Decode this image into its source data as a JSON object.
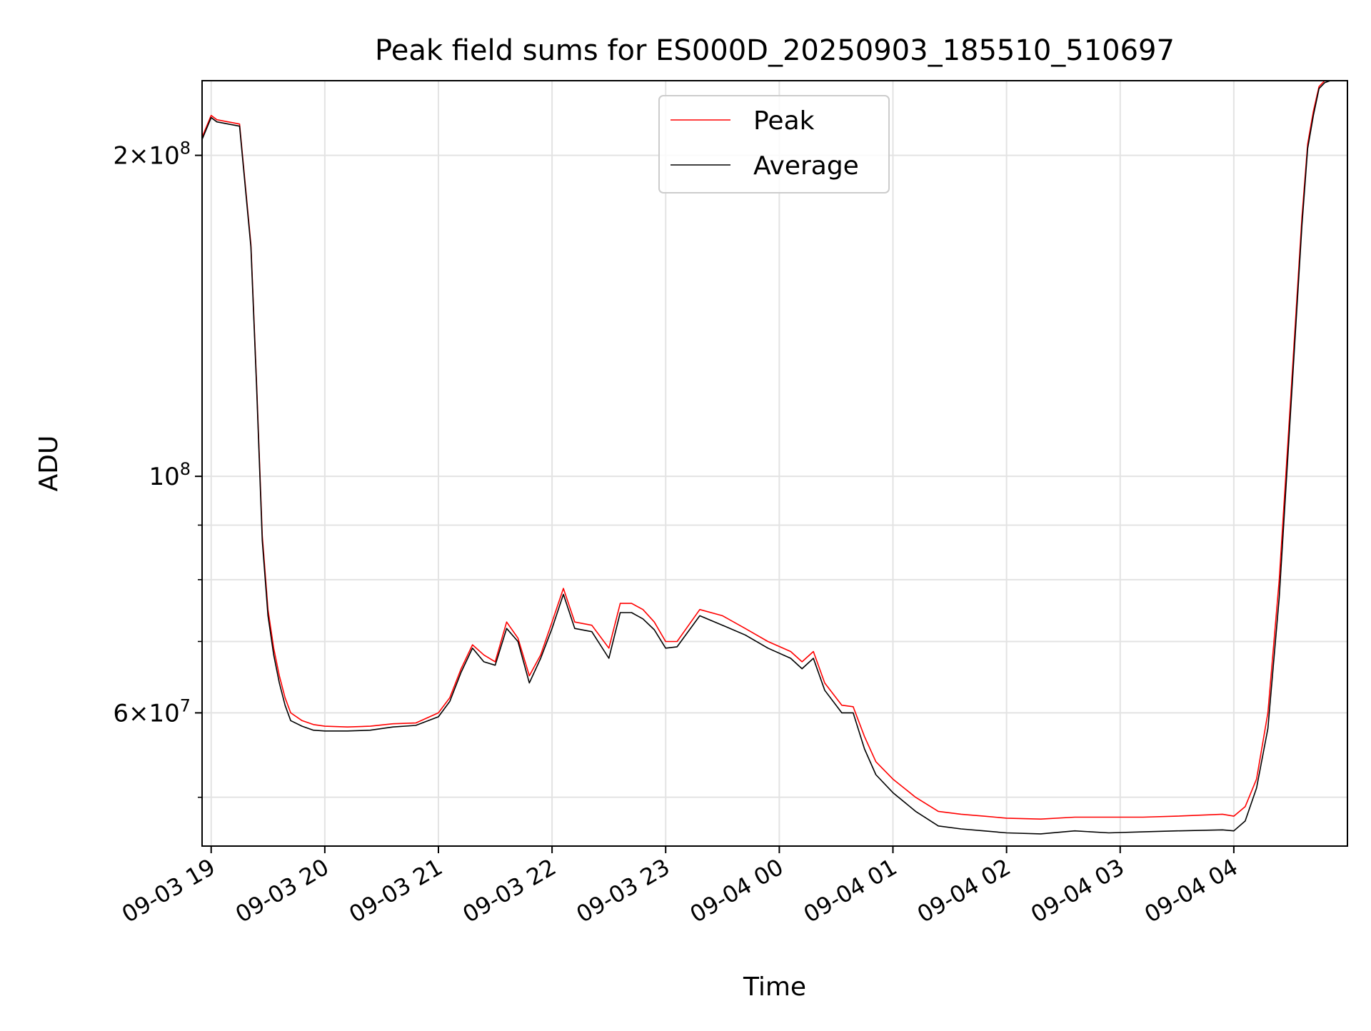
{
  "chart_data": {
    "type": "line",
    "title": "Peak field sums for ES000D_20250903_185510_510697",
    "xlabel": "Time",
    "ylabel": "ADU",
    "x_unit": "hours since 2025-09-03 19:00 (axis shows MM-DD HH)",
    "xlim": [
      -0.08,
      10.0
    ],
    "ylim": [
      45000000,
      235000000
    ],
    "yscale": "log",
    "grid": true,
    "legend_position": "upper center",
    "x_ticks": [
      {
        "value": 0,
        "label": "09-03 19"
      },
      {
        "value": 1,
        "label": "09-03 20"
      },
      {
        "value": 2,
        "label": "09-03 21"
      },
      {
        "value": 3,
        "label": "09-03 22"
      },
      {
        "value": 4,
        "label": "09-03 23"
      },
      {
        "value": 5,
        "label": "09-04 00"
      },
      {
        "value": 6,
        "label": "09-04 01"
      },
      {
        "value": 7,
        "label": "09-04 02"
      },
      {
        "value": 8,
        "label": "09-04 03"
      },
      {
        "value": 9,
        "label": "09-04 04"
      }
    ],
    "y_major_ticks": [
      {
        "value": 200000000,
        "mantissa": "2",
        "exponent": "8"
      },
      {
        "value": 100000000,
        "mantissa": "",
        "exponent": "8"
      },
      {
        "value": 60000000,
        "mantissa": "6",
        "exponent": "7"
      }
    ],
    "y_minor_ticks": [
      50000000,
      70000000,
      80000000,
      90000000
    ],
    "series": [
      {
        "name": "Peak",
        "color": "#ff0000",
        "x": [
          -0.08,
          0.0,
          0.05,
          0.25,
          0.35,
          0.4,
          0.45,
          0.5,
          0.55,
          0.6,
          0.65,
          0.7,
          0.8,
          0.9,
          1.0,
          1.2,
          1.4,
          1.6,
          1.8,
          2.0,
          2.1,
          2.2,
          2.3,
          2.4,
          2.5,
          2.6,
          2.7,
          2.8,
          2.9,
          3.0,
          3.1,
          3.2,
          3.35,
          3.5,
          3.6,
          3.7,
          3.8,
          3.9,
          4.0,
          4.1,
          4.3,
          4.5,
          4.7,
          4.9,
          5.1,
          5.2,
          5.3,
          5.4,
          5.55,
          5.65,
          5.75,
          5.85,
          6.0,
          6.2,
          6.4,
          6.6,
          6.8,
          7.0,
          7.3,
          7.6,
          7.9,
          8.2,
          8.5,
          8.9,
          9.0,
          9.1,
          9.2,
          9.3,
          9.4,
          9.5,
          9.6,
          9.65,
          9.7,
          9.75,
          9.8,
          9.85,
          10.0
        ],
        "y": [
          208000000,
          218000000,
          216000000,
          214000000,
          165000000,
          122000000,
          88000000,
          75000000,
          69000000,
          65000000,
          62000000,
          60000000,
          59000000,
          58500000,
          58300000,
          58200000,
          58300000,
          58600000,
          58700000,
          60000000,
          62000000,
          66000000,
          69500000,
          68000000,
          67000000,
          73000000,
          70500000,
          65000000,
          68000000,
          73000000,
          78500000,
          73000000,
          72500000,
          69000000,
          76000000,
          76000000,
          75000000,
          73000000,
          70000000,
          70000000,
          75000000,
          74000000,
          72000000,
          70000000,
          68500000,
          67000000,
          68500000,
          64000000,
          61000000,
          60800000,
          57000000,
          54000000,
          52000000,
          50000000,
          48500000,
          48200000,
          48000000,
          47800000,
          47700000,
          47900000,
          47900000,
          47900000,
          48000000,
          48200000,
          48000000,
          49000000,
          52000000,
          60000000,
          80000000,
          118000000,
          175000000,
          205000000,
          220000000,
          232000000,
          235000000,
          236000000,
          236000000
        ]
      },
      {
        "name": "Average",
        "color": "#000000",
        "x": [
          -0.08,
          0.0,
          0.05,
          0.25,
          0.35,
          0.4,
          0.45,
          0.5,
          0.55,
          0.6,
          0.65,
          0.7,
          0.8,
          0.9,
          1.0,
          1.2,
          1.4,
          1.6,
          1.8,
          2.0,
          2.1,
          2.2,
          2.3,
          2.4,
          2.5,
          2.6,
          2.7,
          2.8,
          2.9,
          3.0,
          3.1,
          3.2,
          3.35,
          3.5,
          3.6,
          3.7,
          3.8,
          3.9,
          4.0,
          4.1,
          4.3,
          4.5,
          4.7,
          4.9,
          5.1,
          5.2,
          5.3,
          5.4,
          5.55,
          5.65,
          5.75,
          5.85,
          6.0,
          6.2,
          6.4,
          6.6,
          6.8,
          7.0,
          7.3,
          7.6,
          7.9,
          8.2,
          8.5,
          8.9,
          9.0,
          9.1,
          9.2,
          9.3,
          9.4,
          9.5,
          9.6,
          9.65,
          9.7,
          9.75,
          9.8,
          9.85,
          10.0
        ],
        "y": [
          207000000,
          217000000,
          215000000,
          213000000,
          164000000,
          121000000,
          87000000,
          74000000,
          68000000,
          64000000,
          61000000,
          59000000,
          58300000,
          57800000,
          57700000,
          57700000,
          57800000,
          58200000,
          58400000,
          59500000,
          61500000,
          65500000,
          69000000,
          67000000,
          66500000,
          72000000,
          70000000,
          64000000,
          67500000,
          72000000,
          77500000,
          72000000,
          71500000,
          67500000,
          74500000,
          74500000,
          73500000,
          71800000,
          69000000,
          69200000,
          74000000,
          72500000,
          71000000,
          69000000,
          67500000,
          66000000,
          67500000,
          63000000,
          60000000,
          60000000,
          55500000,
          52500000,
          50500000,
          48500000,
          47000000,
          46700000,
          46500000,
          46300000,
          46200000,
          46500000,
          46300000,
          46400000,
          46500000,
          46600000,
          46500000,
          47500000,
          51000000,
          58000000,
          77000000,
          115000000,
          172000000,
          203000000,
          218000000,
          231000000,
          234000000,
          235000000,
          235500000
        ]
      }
    ]
  }
}
